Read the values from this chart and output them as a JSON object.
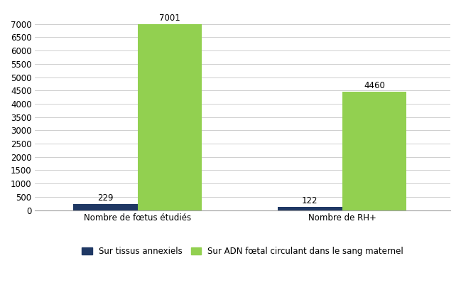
{
  "categories": [
    "Nombre de fœtus étudiés",
    "Nombre de RH+"
  ],
  "series": [
    {
      "name": "Sur tissus annexiels",
      "values": [
        229,
        122
      ],
      "color": "#1F3864"
    },
    {
      "name": "Sur ADN fœtal circulant dans le sang maternel",
      "values": [
        7001,
        4460
      ],
      "color": "#92D050"
    }
  ],
  "ylim": [
    0,
    7500
  ],
  "yticks": [
    0,
    500,
    1000,
    1500,
    2000,
    2500,
    3000,
    3500,
    4000,
    4500,
    5000,
    5500,
    6000,
    6500,
    7000
  ],
  "bar_width": 0.22,
  "group_centers": [
    0.35,
    1.05
  ],
  "background_color": "#ffffff",
  "grid_color": "#c8c8c8",
  "tick_fontsize": 8.5,
  "label_fontsize": 8.5,
  "legend_fontsize": 8.5,
  "annotation_fontsize": 8.5
}
